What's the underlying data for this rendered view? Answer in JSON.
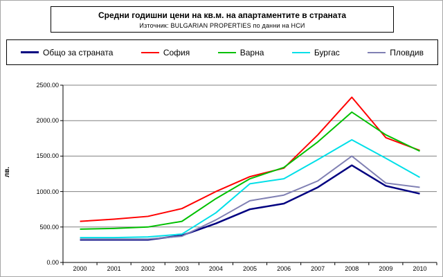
{
  "chart_data": {
    "type": "line",
    "title": "Средни годишни цени на кв.м. на апартаментите в страната",
    "subtitle": "Източник: BULGARIAN PROPERTIES по данни на НСИ",
    "ylabel": "лв.",
    "ylim": [
      0,
      2500
    ],
    "ytick_step": 500,
    "yticks": [
      "0.00",
      "500.00",
      "1000.00",
      "1500.00",
      "2000.00",
      "2500.00"
    ],
    "categories": [
      "2000",
      "2001",
      "2002",
      "2003",
      "2004",
      "2005",
      "2006",
      "2007",
      "2008",
      "2009",
      "2010"
    ],
    "grid": true,
    "legend_position": "top",
    "series": [
      {
        "id": "total",
        "name": "Общо за страната",
        "color": "#000080",
        "values": [
          320,
          320,
          320,
          380,
          550,
          750,
          830,
          1060,
          1370,
          1080,
          970
        ]
      },
      {
        "id": "sofia",
        "name": "София",
        "color": "#ff0000",
        "values": [
          580,
          610,
          650,
          760,
          1000,
          1210,
          1330,
          1800,
          2330,
          1760,
          1580
        ]
      },
      {
        "id": "varna",
        "name": "Варна",
        "color": "#00c000",
        "values": [
          470,
          480,
          500,
          580,
          900,
          1180,
          1340,
          1700,
          2120,
          1800,
          1570
        ]
      },
      {
        "id": "burgas",
        "name": "Бургас",
        "color": "#00dfe8",
        "values": [
          350,
          350,
          360,
          400,
          700,
          1110,
          1180,
          1450,
          1730,
          1470,
          1200
        ]
      },
      {
        "id": "plovdiv",
        "name": "Пловдив",
        "color": "#8080b3",
        "values": [
          330,
          330,
          330,
          370,
          600,
          870,
          950,
          1150,
          1500,
          1120,
          1060
        ]
      }
    ]
  }
}
